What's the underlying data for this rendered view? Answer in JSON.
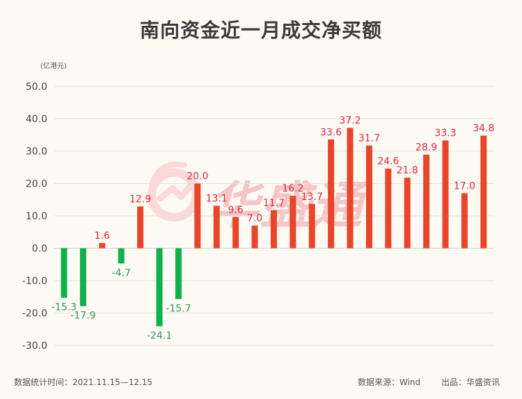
{
  "title": "南向资金近一月成交净买额",
  "unit": "(亿港元)",
  "watermark": "华盛通",
  "footer": {
    "date_range": "数据统计时间：2021.11.15—12.15",
    "source": "数据来源：Wind",
    "producer": "出品：华盛资讯"
  },
  "colors": {
    "positive": "#e8452a",
    "negative": "#10b04e",
    "positive_label": "#e0263a",
    "negative_label": "#2f9a52"
  },
  "chart_data": {
    "type": "bar",
    "title": "南向资金近一月成交净买额",
    "ylabel": "(亿港元)",
    "ylim": [
      -30,
      50
    ],
    "yticks": [
      "50.0",
      "40.0",
      "30.0",
      "20.0",
      "10.0",
      "0.0",
      "-10.0",
      "-20.0",
      "-30.0"
    ],
    "grid": true,
    "values": [
      -15.3,
      -17.9,
      1.6,
      -4.7,
      12.9,
      -24.1,
      -15.7,
      20.0,
      13.1,
      9.6,
      7.0,
      11.7,
      16.2,
      13.7,
      33.6,
      37.2,
      31.7,
      24.6,
      21.8,
      28.9,
      33.3,
      17.0,
      34.8
    ],
    "labels": [
      "-15.3",
      "-17.9",
      "1.6",
      "-4.7",
      "12.9",
      "-24.1",
      "-15.7",
      "20.0",
      "13.1",
      "9.6",
      "7.0",
      "11.7",
      "16.2",
      "13.7",
      "33.6",
      "37.2",
      "31.7",
      "24.6",
      "21.8",
      "28.9",
      "33.3",
      "17.0",
      "34.8"
    ]
  }
}
